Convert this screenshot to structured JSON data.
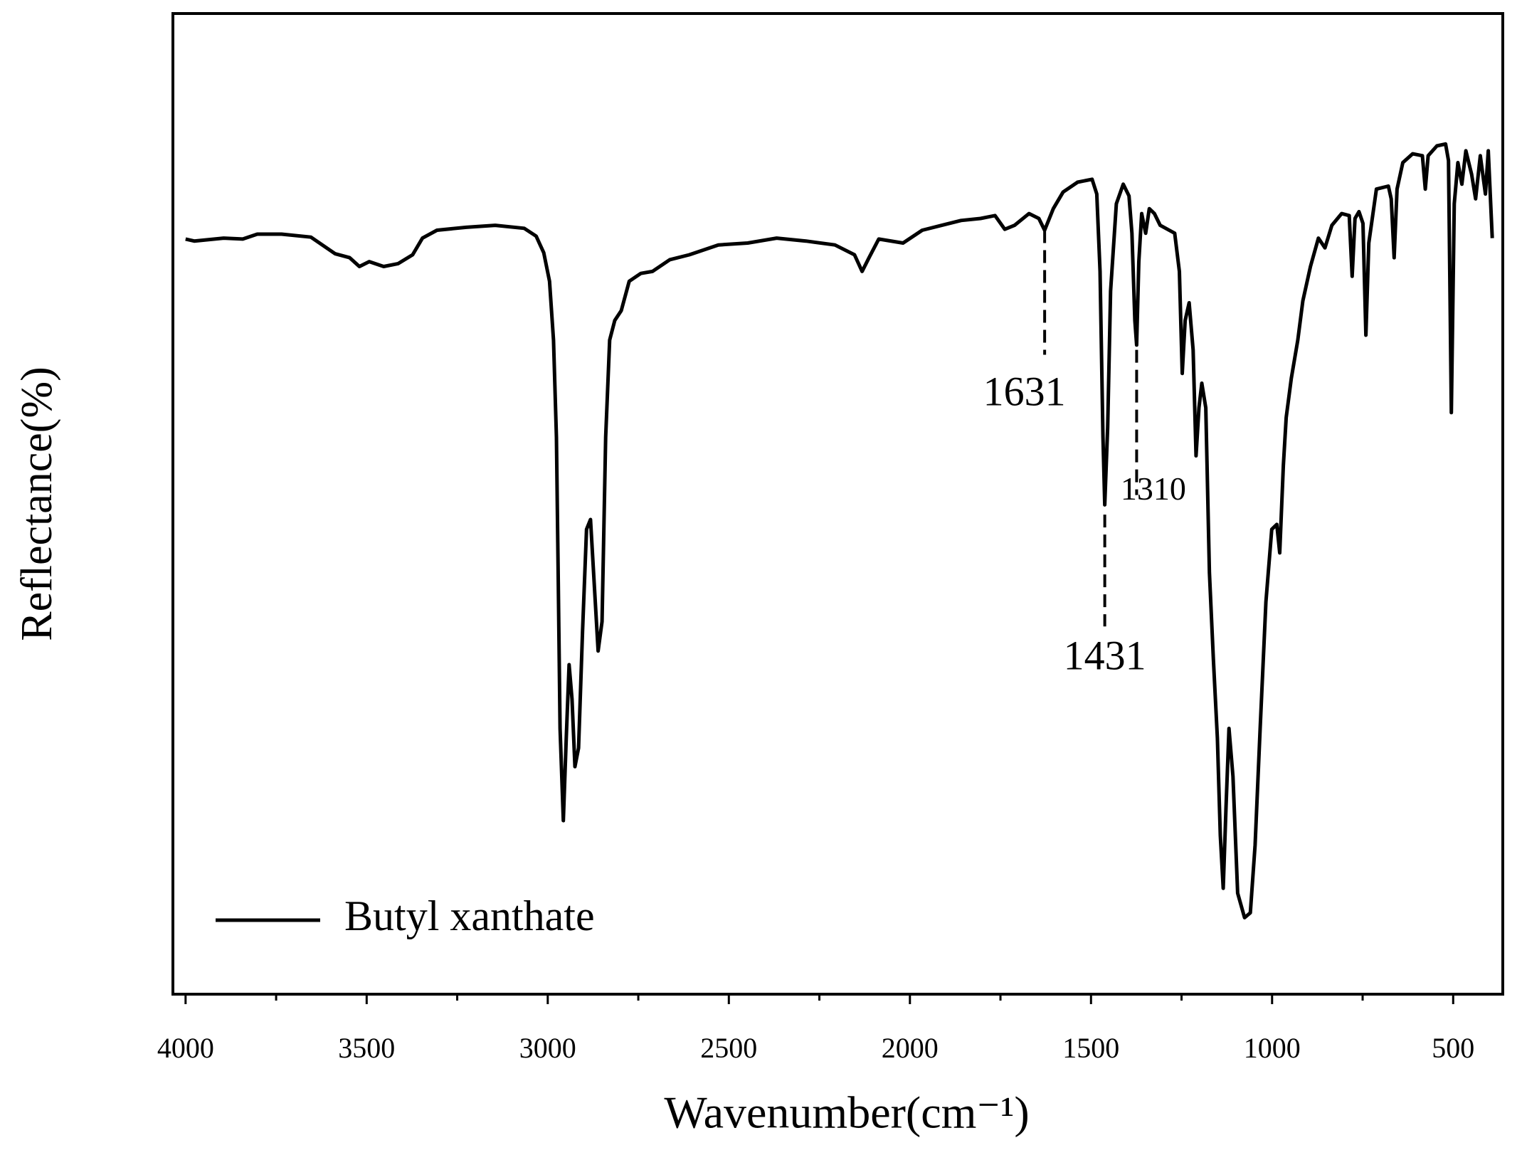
{
  "chart_data": {
    "type": "line",
    "x_label": "Wavenumber(cm⁻¹)",
    "y_label": "Reflectance(%)",
    "xlim": [
      4035,
      363
    ],
    "ylim": [
      0,
      100
    ],
    "xticks": [
      4000,
      3500,
      3000,
      2500,
      2000,
      1500,
      1000,
      500
    ],
    "xminorticks": [
      3750,
      3250,
      2750,
      2250,
      1750,
      1250,
      750
    ],
    "legend": "lower left",
    "x": [
      4000,
      3976,
      3895,
      3842,
      3802,
      3735,
      3654,
      3587,
      3547,
      3520,
      3493,
      3453,
      3413,
      3373,
      3346,
      3306,
      3225,
      3145,
      3065,
      3032,
      3011,
      2995,
      2984,
      2976,
      2971,
      2966,
      2957,
      2949,
      2941,
      2933,
      2925,
      2915,
      2904,
      2893,
      2882,
      2872,
      2861,
      2850,
      2840,
      2829,
      2815,
      2797,
      2775,
      2743,
      2711,
      2663,
      2609,
      2529,
      2448,
      2368,
      2287,
      2207,
      2153,
      2132,
      2113,
      2086,
      2019,
      1966,
      1912,
      1859,
      1805,
      1765,
      1738,
      1711,
      1671,
      1644,
      1628,
      1604,
      1577,
      1537,
      1497,
      1484,
      1475,
      1467,
      1462,
      1454,
      1446,
      1430,
      1411,
      1395,
      1387,
      1379,
      1374,
      1368,
      1360,
      1349,
      1339,
      1325,
      1309,
      1269,
      1256,
      1248,
      1240,
      1229,
      1218,
      1210,
      1202,
      1194,
      1183,
      1173,
      1162,
      1151,
      1143,
      1135,
      1127,
      1119,
      1108,
      1095,
      1076,
      1060,
      1047,
      1033,
      1017,
      1001,
      987,
      979,
      969,
      961,
      947,
      929,
      915,
      894,
      872,
      854,
      835,
      808,
      787,
      779,
      771,
      760,
      749,
      741,
      733,
      712,
      679,
      671,
      663,
      655,
      639,
      612,
      585,
      577,
      569,
      545,
      521,
      513,
      505,
      497,
      487,
      476,
      465,
      449,
      438,
      425,
      411,
      403,
      392
    ],
    "series": [
      {
        "name": "Butyl xanthate",
        "color": "#000000",
        "values": [
          77.0,
          76.8,
          77.1,
          77.0,
          77.5,
          77.5,
          77.2,
          75.5,
          75.1,
          74.2,
          74.7,
          74.2,
          74.5,
          75.4,
          77.1,
          77.9,
          78.2,
          78.4,
          78.1,
          77.3,
          75.6,
          72.7,
          66.7,
          56.8,
          42.0,
          27.1,
          17.7,
          26.1,
          33.6,
          30.1,
          23.2,
          25.1,
          37.0,
          47.4,
          48.4,
          42.0,
          35.0,
          38.0,
          56.8,
          66.7,
          68.7,
          69.7,
          72.7,
          73.5,
          73.7,
          74.9,
          75.4,
          76.4,
          76.6,
          77.1,
          76.8,
          76.4,
          75.4,
          73.7,
          75.1,
          77.0,
          76.6,
          77.9,
          78.4,
          78.9,
          79.1,
          79.4,
          78.0,
          78.4,
          79.6,
          79.1,
          77.9,
          80.1,
          81.8,
          82.8,
          83.1,
          81.6,
          73.7,
          56.8,
          49.9,
          57.8,
          71.7,
          80.6,
          82.6,
          81.4,
          77.6,
          68.7,
          66.2,
          74.7,
          79.6,
          77.6,
          80.1,
          79.6,
          78.4,
          77.6,
          73.7,
          63.3,
          68.7,
          70.5,
          65.7,
          54.9,
          59.8,
          62.3,
          59.8,
          43.0,
          34.1,
          26.1,
          16.2,
          10.8,
          19.2,
          27.1,
          22.2,
          10.3,
          7.8,
          8.3,
          15.2,
          27.1,
          40.0,
          47.4,
          47.9,
          45.0,
          53.9,
          58.8,
          62.8,
          66.7,
          70.7,
          74.2,
          77.1,
          76.1,
          78.4,
          79.6,
          79.4,
          73.2,
          79.1,
          79.8,
          78.6,
          67.2,
          76.6,
          82.1,
          82.4,
          81.1,
          75.1,
          82.1,
          84.8,
          85.7,
          85.5,
          82.1,
          85.5,
          86.5,
          86.7,
          85.0,
          59.3,
          80.6,
          84.8,
          82.6,
          86.0,
          83.6,
          81.1,
          85.5,
          81.6,
          86.0,
          77.1
        ]
      }
    ],
    "annotations": [
      {
        "text": "1631",
        "x": 1628,
        "y_top": 77.9,
        "y_bottom": 65.2,
        "label_x": 1684,
        "label_y": 61.0
      },
      {
        "text": "1431",
        "x": 1462,
        "y_top": 48.9,
        "y_bottom": 37.5,
        "label_x": 1462,
        "label_y": 34.1
      },
      {
        "text": "1310",
        "x": 1374,
        "y_top": 65.7,
        "y_bottom": 50.9,
        "label_x": 1328,
        "label_y": 51.2
      }
    ]
  }
}
